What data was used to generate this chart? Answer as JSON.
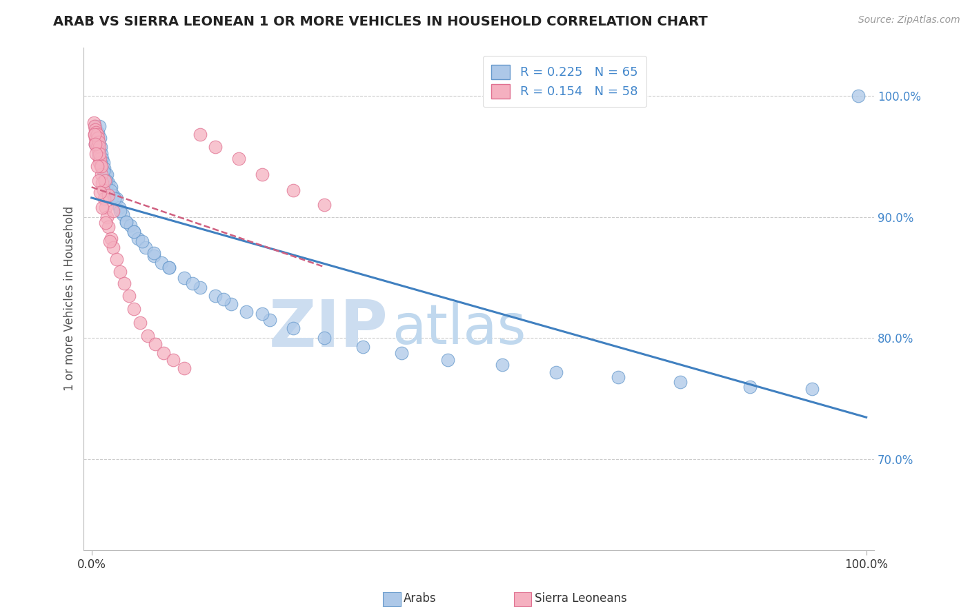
{
  "title": "ARAB VS SIERRA LEONEAN 1 OR MORE VEHICLES IN HOUSEHOLD CORRELATION CHART",
  "source_text": "Source: ZipAtlas.com",
  "ylabel": "1 or more Vehicles in Household",
  "xlim": [
    -0.01,
    1.01
  ],
  "ylim": [
    0.625,
    1.04
  ],
  "ytick_positions": [
    0.7,
    0.8,
    0.9,
    1.0
  ],
  "ytick_labels": [
    "70.0%",
    "80.0%",
    "90.0%",
    "100.0%"
  ],
  "arab_color": "#adc8e8",
  "arab_edge_color": "#6699cc",
  "sl_color": "#f5b0c0",
  "sl_edge_color": "#e07090",
  "trend_arab_color": "#4080c0",
  "trend_sl_color": "#d06080",
  "R_arab": 0.225,
  "N_arab": 65,
  "R_sl": 0.154,
  "N_sl": 58,
  "legend_label_arab": "Arabs",
  "legend_label_sl": "Sierra Leoneans",
  "background_color": "#ffffff",
  "grid_color": "#cccccc",
  "title_color": "#222222",
  "axis_label_color": "#555555",
  "tick_color": "#4488cc",
  "watermark_zip_color": "#ccddf0",
  "watermark_atlas_color": "#c0d8ee",
  "arab_x": [
    0.005,
    0.005,
    0.006,
    0.007,
    0.008,
    0.008,
    0.009,
    0.01,
    0.01,
    0.011,
    0.012,
    0.013,
    0.014,
    0.015,
    0.016,
    0.018,
    0.02,
    0.022,
    0.025,
    0.028,
    0.032,
    0.036,
    0.04,
    0.045,
    0.05,
    0.055,
    0.06,
    0.07,
    0.08,
    0.09,
    0.1,
    0.12,
    0.14,
    0.16,
    0.18,
    0.2,
    0.23,
    0.26,
    0.3,
    0.35,
    0.4,
    0.46,
    0.53,
    0.6,
    0.68,
    0.76,
    0.85,
    0.93,
    0.99,
    0.007,
    0.009,
    0.012,
    0.015,
    0.019,
    0.024,
    0.03,
    0.037,
    0.045,
    0.055,
    0.065,
    0.08,
    0.1,
    0.13,
    0.17,
    0.22
  ],
  "arab_y": [
    0.975,
    0.96,
    0.97,
    0.965,
    0.97,
    0.958,
    0.96,
    0.975,
    0.955,
    0.965,
    0.958,
    0.952,
    0.948,
    0.945,
    0.94,
    0.935,
    0.935,
    0.928,
    0.925,
    0.918,
    0.915,
    0.908,
    0.902,
    0.896,
    0.893,
    0.888,
    0.882,
    0.875,
    0.868,
    0.862,
    0.858,
    0.85,
    0.842,
    0.835,
    0.828,
    0.822,
    0.815,
    0.808,
    0.8,
    0.793,
    0.788,
    0.782,
    0.778,
    0.772,
    0.768,
    0.764,
    0.76,
    0.758,
    1.0,
    0.96,
    0.952,
    0.945,
    0.938,
    0.93,
    0.922,
    0.915,
    0.905,
    0.896,
    0.888,
    0.88,
    0.87,
    0.858,
    0.845,
    0.832,
    0.82
  ],
  "sl_x": [
    0.003,
    0.004,
    0.004,
    0.005,
    0.005,
    0.005,
    0.006,
    0.006,
    0.007,
    0.007,
    0.008,
    0.008,
    0.009,
    0.009,
    0.01,
    0.01,
    0.011,
    0.012,
    0.013,
    0.014,
    0.015,
    0.016,
    0.018,
    0.02,
    0.022,
    0.025,
    0.028,
    0.032,
    0.037,
    0.042,
    0.048,
    0.055,
    0.063,
    0.072,
    0.082,
    0.093,
    0.105,
    0.12,
    0.14,
    0.16,
    0.19,
    0.22,
    0.26,
    0.3,
    0.01,
    0.013,
    0.017,
    0.022,
    0.028,
    0.004,
    0.005,
    0.006,
    0.007,
    0.009,
    0.011,
    0.014,
    0.018,
    0.023
  ],
  "sl_y": [
    0.978,
    0.975,
    0.968,
    0.972,
    0.965,
    0.96,
    0.97,
    0.962,
    0.968,
    0.958,
    0.965,
    0.955,
    0.962,
    0.95,
    0.958,
    0.945,
    0.948,
    0.942,
    0.935,
    0.928,
    0.922,
    0.915,
    0.908,
    0.9,
    0.892,
    0.882,
    0.875,
    0.865,
    0.855,
    0.845,
    0.835,
    0.824,
    0.813,
    0.802,
    0.795,
    0.788,
    0.782,
    0.775,
    0.968,
    0.958,
    0.948,
    0.935,
    0.922,
    0.91,
    0.952,
    0.942,
    0.93,
    0.918,
    0.905,
    0.968,
    0.96,
    0.952,
    0.942,
    0.93,
    0.92,
    0.908,
    0.895,
    0.88
  ]
}
